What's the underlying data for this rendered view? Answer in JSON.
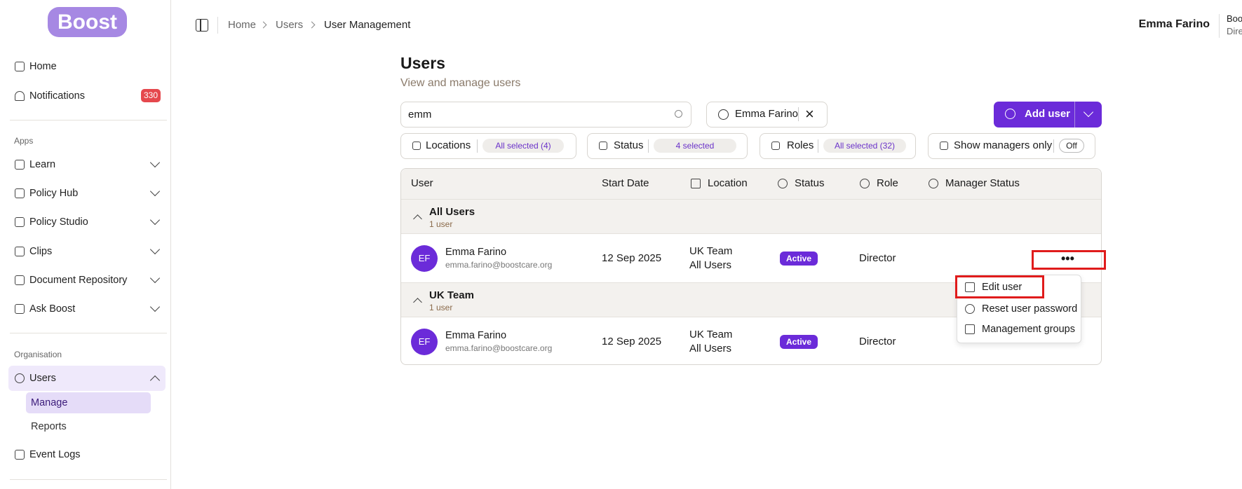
{
  "sidebar": {
    "logo": "Boost",
    "home": "Home",
    "notifications": "Notifications",
    "notification_count": "330",
    "apps_heading": "Apps",
    "apps": [
      "Learn",
      "Policy Hub",
      "Policy Studio",
      "Clips",
      "Document Repository",
      "Ask Boost"
    ],
    "org_heading": "Organisation",
    "users": "Users",
    "users_sub": [
      "Manage",
      "Reports"
    ],
    "event_logs": "Event Logs"
  },
  "header": {
    "breadcrumbs": [
      "Home",
      "Users",
      "User Management"
    ],
    "user_name": "Emma Farino",
    "org_cut": "Boo",
    "role_cut": "Dire"
  },
  "page": {
    "title": "Users",
    "subtitle": "View and manage users"
  },
  "toolbar": {
    "search": "emm",
    "chip": "Emma Farino",
    "add_button": "Add user"
  },
  "filters": [
    {
      "label": "Locations",
      "value": "All selected (4)"
    },
    {
      "label": "Status",
      "value": "4 selected"
    },
    {
      "label": "Roles",
      "value": "All selected (32)"
    },
    {
      "label": "Show managers only",
      "value": "Off"
    }
  ],
  "table": {
    "columns": [
      "User",
      "Start Date",
      "Location",
      "Status",
      "Role",
      "Manager Status"
    ],
    "groups": [
      {
        "name": "All Users",
        "count": "1 user",
        "rows": [
          {
            "initials": "EF",
            "name": "Emma Farino",
            "email": "emma.farino@boostcare.org",
            "start": "12 Sep 2025",
            "locations": [
              "UK Team",
              "All Users"
            ],
            "status": "Active",
            "role": "Director"
          }
        ]
      },
      {
        "name": "UK Team",
        "count": "1 user",
        "rows": [
          {
            "initials": "EF",
            "name": "Emma Farino",
            "email": "emma.farino@boostcare.org",
            "start": "12 Sep 2025",
            "locations": [
              "UK Team",
              "All Users"
            ],
            "status": "Active",
            "role": "Director"
          }
        ]
      }
    ]
  },
  "menu": [
    "Edit user",
    "Reset user password",
    "Management groups"
  ]
}
